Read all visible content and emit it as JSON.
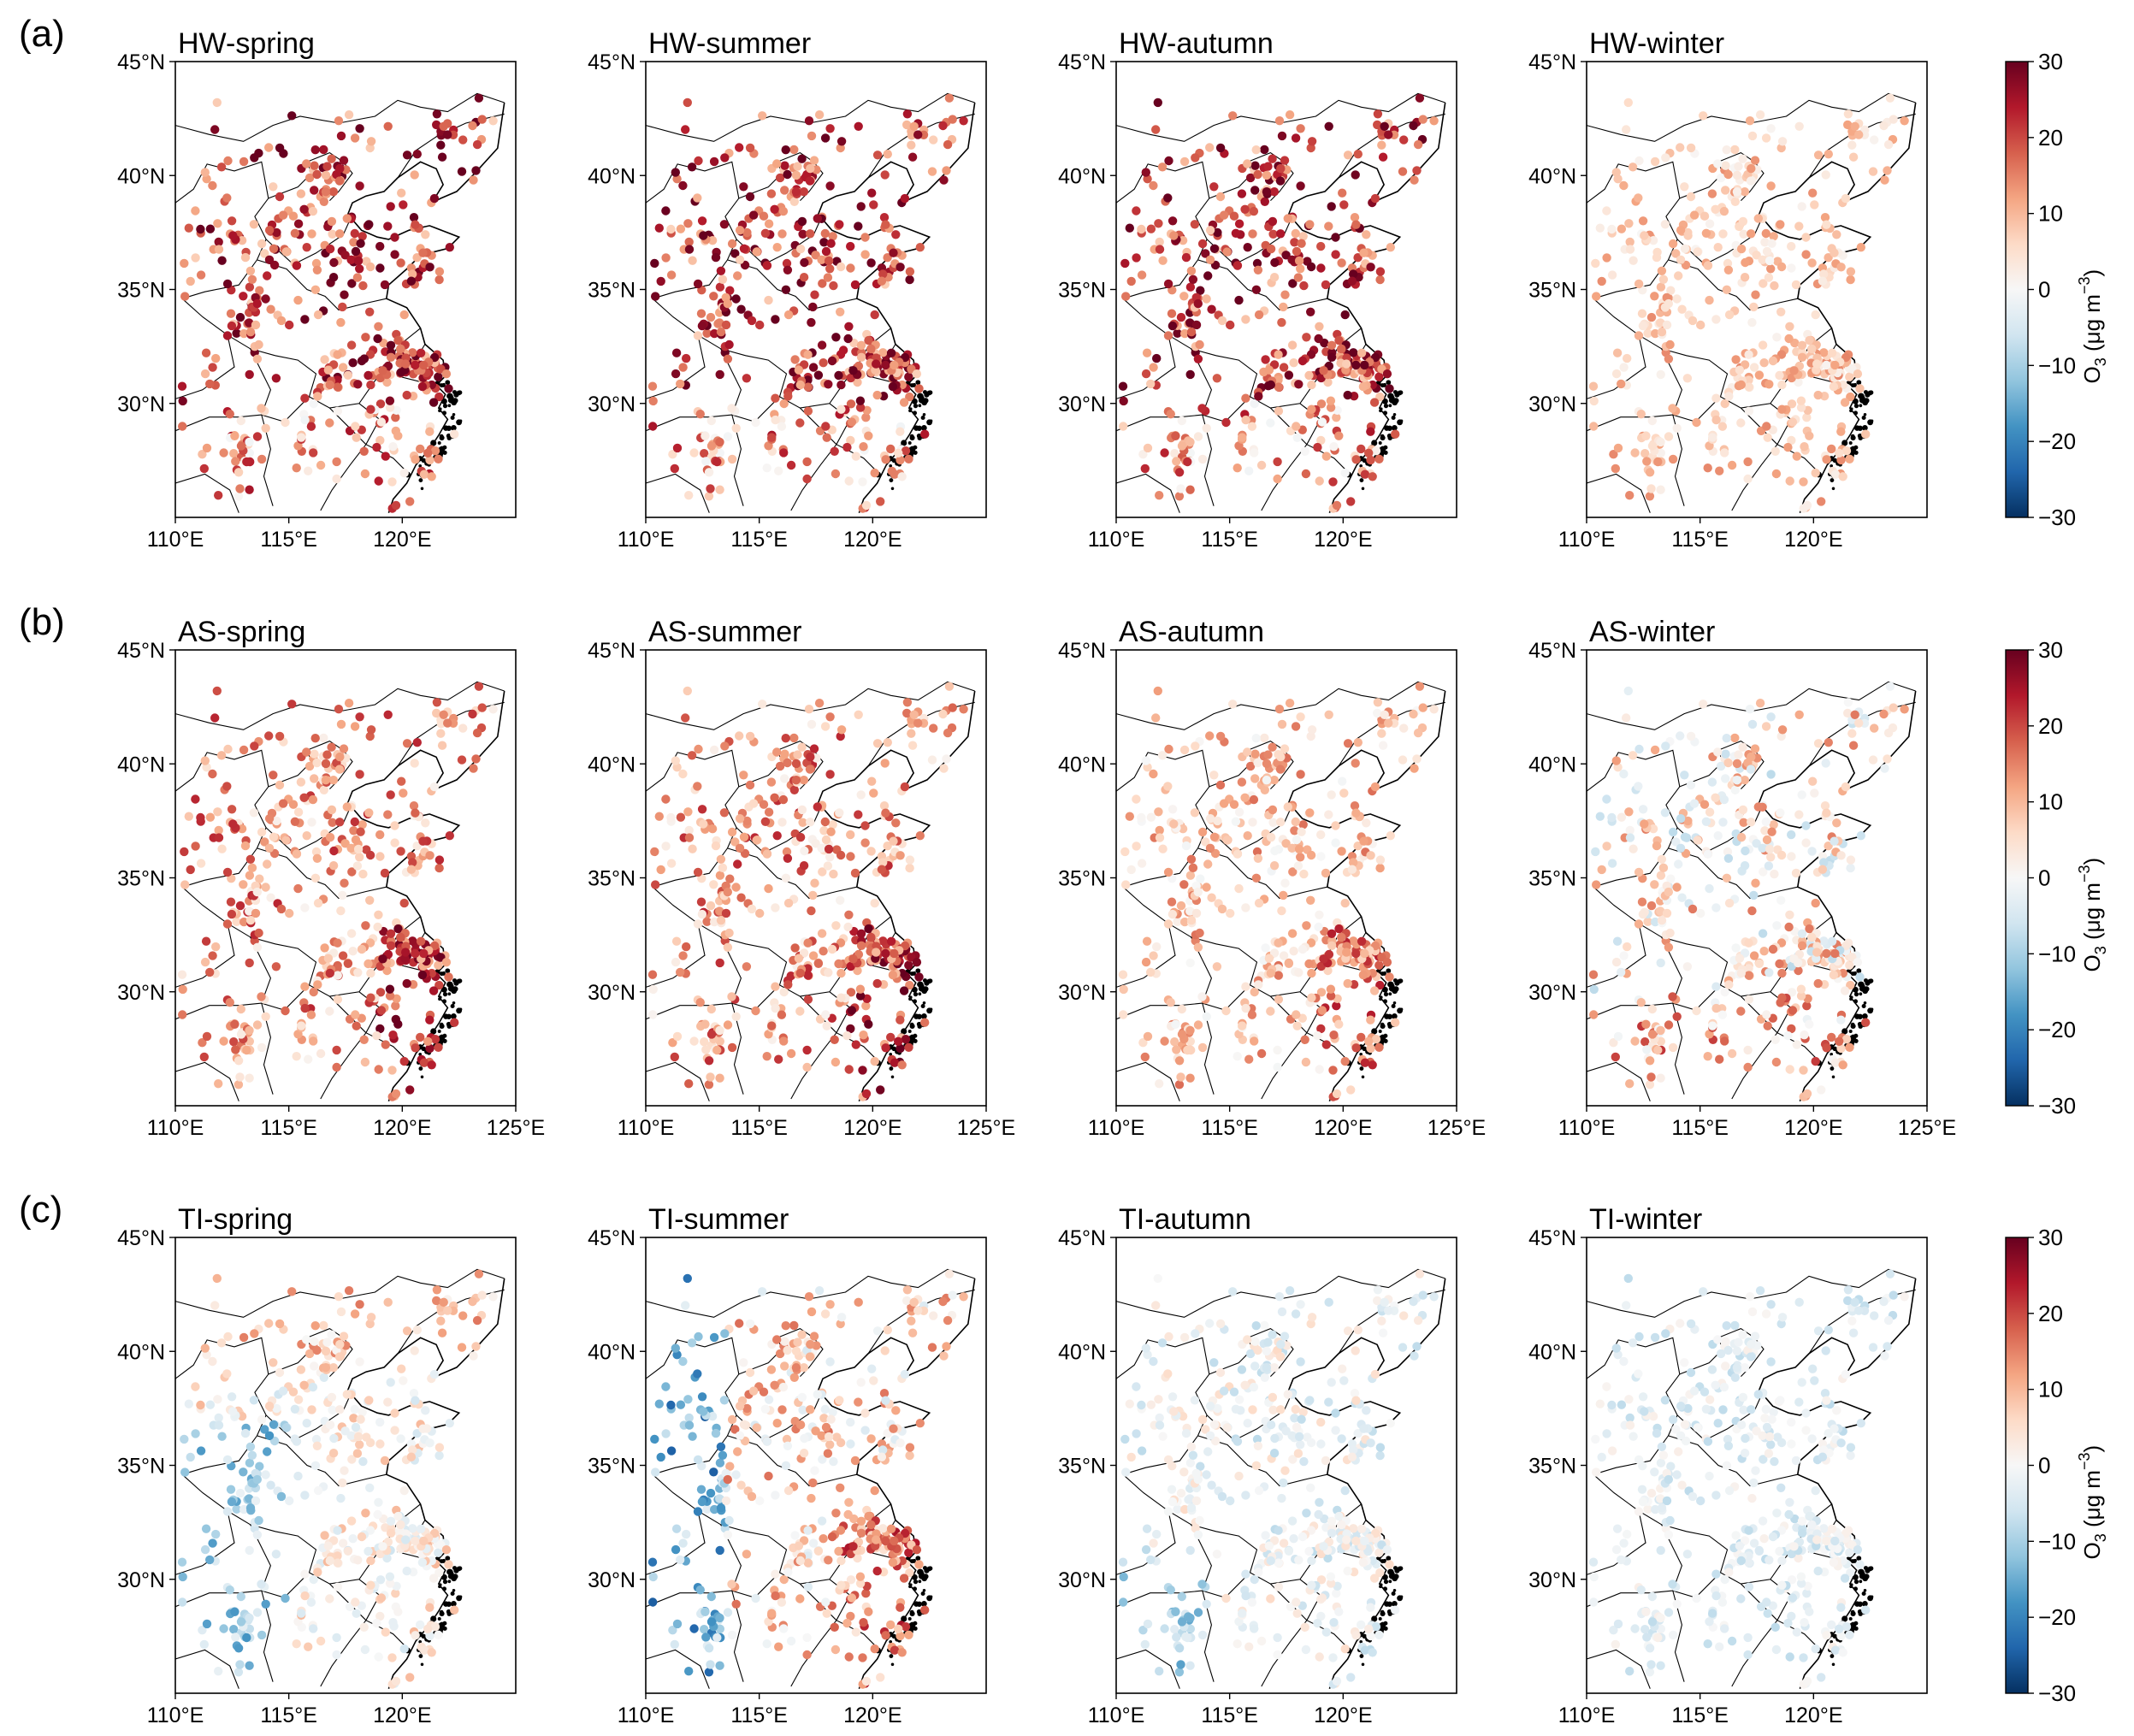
{
  "figure": {
    "rows": [
      {
        "label": "(a)",
        "panels": [
          {
            "title": "HW-spring",
            "scheme": "hw"
          },
          {
            "title": "HW-summer",
            "scheme": "hw"
          },
          {
            "title": "HW-autumn",
            "scheme": "hw"
          },
          {
            "title": "HW-winter",
            "scheme": "winter"
          }
        ],
        "show_125": false
      },
      {
        "label": "(b)",
        "panels": [
          {
            "title": "AS-spring",
            "scheme": "as"
          },
          {
            "title": "AS-summer",
            "scheme": "as"
          },
          {
            "title": "AS-autumn",
            "scheme": "as_autumn"
          },
          {
            "title": "AS-winter",
            "scheme": "as_winter"
          }
        ],
        "show_125": true
      },
      {
        "label": "(c)",
        "panels": [
          {
            "title": "TI-spring",
            "scheme": "ti_spring"
          },
          {
            "title": "TI-summer",
            "scheme": "ti_summer"
          },
          {
            "title": "TI-autumn",
            "scheme": "ti_autumn"
          },
          {
            "title": "TI-winter",
            "scheme": "ti_winter"
          }
        ],
        "show_125": false
      }
    ],
    "colorbar": {
      "ticks": [
        "30",
        "20",
        "10",
        "0",
        "−10",
        "−20",
        "−30"
      ],
      "label_main": "O",
      "label_sub": "3",
      "label_unit_prefix": " (μg m",
      "label_sup": "−3",
      "label_close": ")",
      "colors": [
        "#67001f",
        "#b2182b",
        "#d6604d",
        "#f4a582",
        "#fddbc7",
        "#f7f7f7",
        "#d1e5f0",
        "#92c5de",
        "#4393c3",
        "#2166ac",
        "#053061"
      ]
    }
  },
  "chart_data": {
    "type": "scatter",
    "description_axes": {
      "x_ticks": [
        "110°E",
        "115°E",
        "120°E",
        "125°E"
      ],
      "y_ticks": [
        "45°N",
        "40°N",
        "35°N",
        "30°N"
      ],
      "xlim": [
        110,
        125
      ],
      "ylim": [
        25,
        45
      ]
    },
    "color_scale": {
      "min": -30,
      "max": 30,
      "unit": "μg m−3"
    },
    "panels": [
      {
        "title": "HW-spring",
        "typical_range": [
          5,
          28
        ]
      },
      {
        "title": "HW-summer",
        "typical_range": [
          5,
          30
        ]
      },
      {
        "title": "HW-autumn",
        "typical_range": [
          5,
          28
        ]
      },
      {
        "title": "HW-winter",
        "typical_range": [
          -5,
          15
        ]
      },
      {
        "title": "AS-spring",
        "typical_range": [
          5,
          25
        ]
      },
      {
        "title": "AS-summer",
        "typical_range": [
          5,
          28
        ]
      },
      {
        "title": "AS-autumn",
        "typical_range": [
          0,
          22
        ]
      },
      {
        "title": "AS-winter",
        "typical_range": [
          -8,
          25
        ]
      },
      {
        "title": "TI-spring",
        "typical_range": [
          -20,
          12
        ]
      },
      {
        "title": "TI-summer",
        "typical_range": [
          -25,
          25
        ]
      },
      {
        "title": "TI-autumn",
        "typical_range": [
          -18,
          10
        ]
      },
      {
        "title": "TI-winter",
        "typical_range": [
          -12,
          6
        ]
      }
    ]
  }
}
